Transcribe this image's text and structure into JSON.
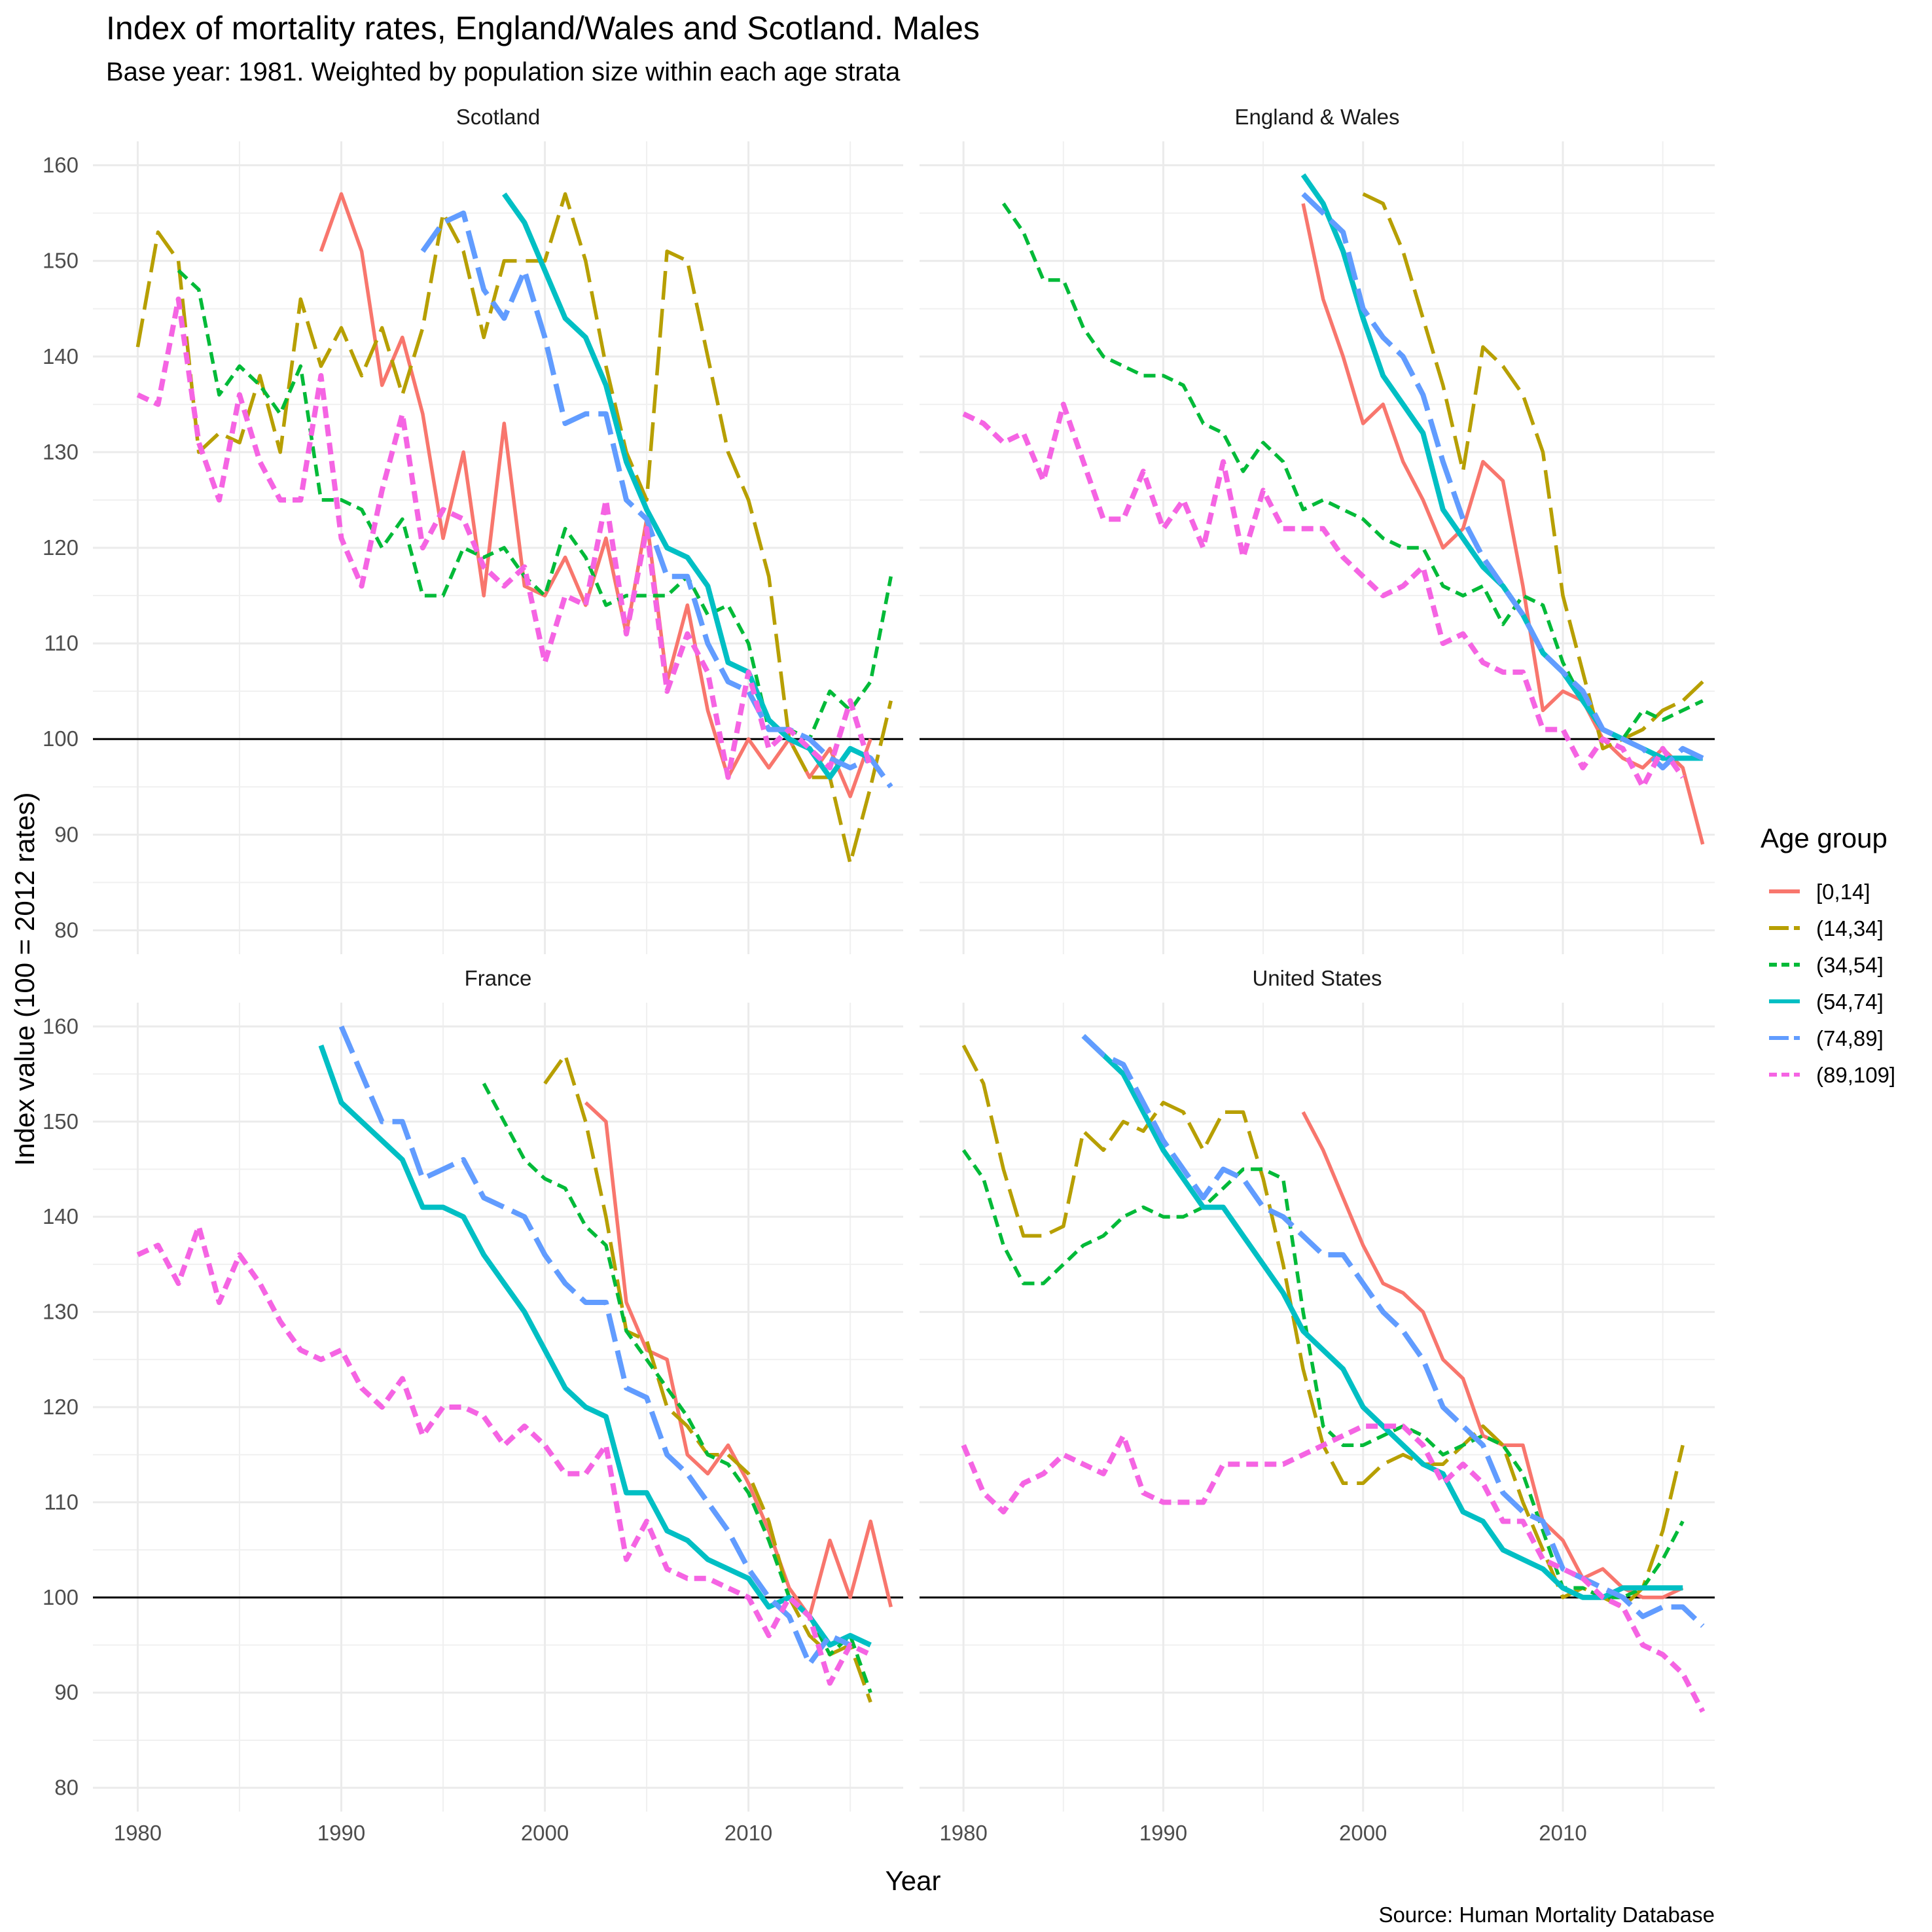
{
  "chart_data": {
    "type": "line",
    "title": "Index of mortality rates, England/Wales and Scotland. Males",
    "subtitle": "Base year: 1981. Weighted by population size within each age strata",
    "xlabel": "Year",
    "ylabel": "Index value (100 = 2012 rates)",
    "caption": "Source: Human Mortality Database",
    "xlim": [
      1977.8,
      2017.6
    ],
    "ylim": [
      77.5,
      162.5
    ],
    "x_ticks": [
      1980,
      1990,
      2000,
      2010
    ],
    "y_ticks": [
      80,
      90,
      100,
      110,
      120,
      130,
      140,
      150,
      160
    ],
    "reference_line": 100,
    "grid": true,
    "legend": {
      "title": "Age group",
      "position": "right",
      "entries": [
        {
          "label": "[0,14]",
          "color": "#F8766D",
          "dash": "solid"
        },
        {
          "label": "(14,34]",
          "color": "#B79F00",
          "dash": "longdash"
        },
        {
          "label": "(34,54]",
          "color": "#00BA38",
          "dash": "dashed"
        },
        {
          "label": "(54,74]",
          "color": "#00BFC4",
          "dash": "solid"
        },
        {
          "label": "(74,89]",
          "color": "#619CFF",
          "dash": "longdash"
        },
        {
          "label": "(89,109]",
          "color": "#F564E3",
          "dash": "dashed"
        }
      ]
    },
    "panels": [
      {
        "name": "Scotland",
        "series": [
          {
            "name": "[0,14]",
            "start": 1989,
            "values": [
              151,
              157,
              151,
              137,
              142,
              134,
              121,
              130,
              115,
              133,
              116,
              115,
              119,
              114,
              121,
              111,
              123,
              106,
              114,
              103,
              96,
              100,
              97,
              100,
              96,
              99,
              94,
              100
            ]
          },
          {
            "name": "(14,34]",
            "start": 1980,
            "values": [
              141,
              153,
              150,
              130,
              132,
              131,
              138,
              130,
              146,
              139,
              143,
              138,
              143,
              136,
              143,
              155,
              151,
              142,
              150,
              150,
              150,
              157,
              150,
              139,
              130,
              125,
              151,
              150,
              140,
              130,
              125,
              117,
              100,
              96,
              96,
              87,
              95,
              104
            ]
          },
          {
            "name": "(34,54]",
            "start": 1982,
            "values": [
              149,
              147,
              136,
              139,
              137,
              134,
              139,
              125,
              125,
              124,
              120,
              123,
              115,
              115,
              120,
              119,
              120,
              117,
              115,
              122,
              119,
              114,
              115,
              115,
              115,
              117,
              113,
              114,
              110,
              101,
              101,
              100,
              105,
              103,
              106,
              117
            ]
          },
          {
            "name": "(54,74]",
            "start": 1998,
            "values": [
              157,
              154,
              149,
              144,
              142,
              137,
              129,
              124,
              120,
              119,
              116,
              108,
              107,
              102,
              100,
              99,
              96,
              99,
              98
            ]
          },
          {
            "name": "(74,89]",
            "start": 1994,
            "values": [
              151,
              154,
              155,
              147,
              144,
              149,
              142,
              133,
              134,
              134,
              125,
              123,
              117,
              117,
              110,
              106,
              105,
              101,
              101,
              100,
              98,
              97,
              98,
              95
            ]
          },
          {
            "name": "(89,109]",
            "start": 1980,
            "values": [
              136,
              135,
              146,
              131,
              125,
              136,
              129,
              125,
              125,
              138,
              121,
              116,
              126,
              134,
              120,
              124,
              123,
              118,
              116,
              118,
              108,
              115,
              114,
              125,
              111,
              122,
              105,
              111,
              107,
              96,
              107,
              99,
              101,
              99,
              97,
              104,
              97
            ]
          }
        ]
      },
      {
        "name": "England & Wales",
        "series": [
          {
            "name": "[0,14]",
            "start": 1997,
            "values": [
              156,
              146,
              140,
              133,
              135,
              129,
              125,
              120,
              122,
              129,
              127,
              116,
              103,
              105,
              104,
              100,
              98,
              97,
              99,
              97,
              89
            ]
          },
          {
            "name": "(14,34]",
            "start": 2000,
            "values": [
              157,
              156,
              151,
              144,
              137,
              128,
              141,
              139,
              136,
              130,
              115,
              107,
              99,
              100,
              101,
              103,
              104,
              106
            ]
          },
          {
            "name": "(34,54]",
            "start": 1982,
            "values": [
              156,
              153,
              148,
              148,
              143,
              140,
              139,
              138,
              138,
              137,
              133,
              132,
              128,
              131,
              129,
              124,
              125,
              124,
              123,
              121,
              120,
              120,
              116,
              115,
              116,
              112,
              115,
              114,
              108,
              104,
              101,
              100,
              103,
              102,
              103,
              104
            ]
          },
          {
            "name": "(54,74]",
            "start": 1997,
            "values": [
              159,
              156,
              151,
              144,
              138,
              135,
              132,
              124,
              121,
              118,
              116,
              113,
              109,
              107,
              104,
              101,
              100,
              99,
              98,
              98,
              98
            ]
          },
          {
            "name": "(74,89]",
            "start": 1997,
            "values": [
              157,
              155,
              153,
              145,
              142,
              140,
              136,
              129,
              123,
              119,
              116,
              113,
              109,
              107,
              105,
              101,
              100,
              99,
              97,
              99,
              98
            ]
          },
          {
            "name": "(89,109]",
            "start": 1980,
            "values": [
              134,
              133,
              131,
              132,
              127,
              135,
              129,
              123,
              123,
              128,
              122,
              125,
              120,
              129,
              119,
              126,
              122,
              122,
              122,
              119,
              117,
              115,
              116,
              118,
              110,
              111,
              108,
              107,
              107,
              101,
              101,
              97,
              100,
              99,
              95,
              99,
              96
            ]
          }
        ]
      },
      {
        "name": "France",
        "series": [
          {
            "name": "[0,14]",
            "start": 2002,
            "values": [
              152,
              150,
              131,
              126,
              125,
              115,
              113,
              116,
              112,
              107,
              101,
              98,
              106,
              100,
              108,
              99
            ]
          },
          {
            "name": "(14,34]",
            "start": 2000,
            "values": [
              154,
              157,
              150,
              140,
              128,
              127,
              120,
              118,
              115,
              115,
              113,
              108,
              100,
              96,
              94,
              95,
              89
            ]
          },
          {
            "name": "(34,54]",
            "start": 1997,
            "values": [
              154,
              150,
              146,
              144,
              143,
              139,
              137,
              128,
              125,
              122,
              119,
              115,
              114,
              111,
              106,
              100,
              98,
              94,
              96,
              90
            ]
          },
          {
            "name": "(54,74]",
            "start": 1989,
            "values": [
              158,
              152,
              150,
              148,
              146,
              141,
              141,
              140,
              136,
              133,
              130,
              126,
              122,
              120,
              119,
              111,
              111,
              107,
              106,
              104,
              103,
              102,
              99,
              100,
              98,
              95,
              96,
              95
            ]
          },
          {
            "name": "(74,89]",
            "start": 1990,
            "values": [
              160,
              155,
              150,
              150,
              144,
              145,
              146,
              142,
              141,
              140,
              136,
              133,
              131,
              131,
              122,
              121,
              115,
              113,
              110,
              107,
              103,
              100,
              98,
              93,
              96,
              95
            ]
          },
          {
            "name": "(89,109]",
            "start": 1980,
            "values": [
              136,
              137,
              133,
              139,
              131,
              136,
              133,
              129,
              126,
              125,
              126,
              122,
              120,
              123,
              117,
              120,
              120,
              119,
              116,
              118,
              116,
              113,
              113,
              116,
              104,
              108,
              103,
              102,
              102,
              101,
              100,
              96,
              100,
              98,
              91,
              95,
              94
            ]
          }
        ]
      },
      {
        "name": "United States",
        "series": [
          {
            "name": "[0,14]",
            "start": 1997,
            "values": [
              151,
              147,
              142,
              137,
              133,
              132,
              130,
              125,
              123,
              117,
              116,
              116,
              108,
              106,
              102,
              103,
              101,
              100,
              100,
              101
            ]
          },
          {
            "name": "(14,34]",
            "start": 1980,
            "values": [
              158,
              154,
              145,
              138,
              138,
              139,
              149,
              147,
              150,
              149,
              152,
              151,
              147,
              151,
              151,
              144,
              135,
              124,
              116,
              112,
              112,
              114,
              115,
              114,
              114,
              116,
              118,
              116,
              110,
              105,
              100,
              101,
              100,
              99,
              101,
              107,
              116
            ]
          },
          {
            "name": "(34,54]",
            "start": 1980,
            "values": [
              147,
              144,
              137,
              133,
              133,
              135,
              137,
              138,
              140,
              141,
              140,
              140,
              141,
              143,
              145,
              145,
              144,
              130,
              118,
              116,
              116,
              117,
              118,
              117,
              115,
              116,
              117,
              116,
              113,
              107,
              101,
              101,
              100,
              100,
              101,
              104,
              108
            ]
          },
          {
            "name": "(54,74]",
            "start": 1986,
            "values": [
              159,
              157,
              155,
              151,
              147,
              144,
              141,
              141,
              138,
              135,
              132,
              128,
              126,
              124,
              120,
              118,
              116,
              114,
              113,
              109,
              108,
              105,
              104,
              103,
              101,
              100,
              100,
              101,
              101,
              101,
              101
            ]
          },
          {
            "name": "(74,89]",
            "start": 1986,
            "values": [
              159,
              157,
              156,
              152,
              148,
              145,
              142,
              145,
              144,
              141,
              140,
              138,
              136,
              136,
              133,
              130,
              128,
              125,
              120,
              118,
              116,
              111,
              109,
              108,
              103,
              102,
              101,
              100,
              98,
              99,
              99,
              97
            ]
          },
          {
            "name": "(89,109]",
            "start": 1980,
            "values": [
              116,
              111,
              109,
              112,
              113,
              115,
              114,
              113,
              117,
              111,
              110,
              110,
              110,
              114,
              114,
              114,
              114,
              115,
              116,
              117,
              118,
              118,
              118,
              116,
              112,
              114,
              112,
              108,
              108,
              104,
              103,
              102,
              100,
              99,
              95,
              94,
              92,
              88
            ]
          }
        ]
      }
    ]
  }
}
